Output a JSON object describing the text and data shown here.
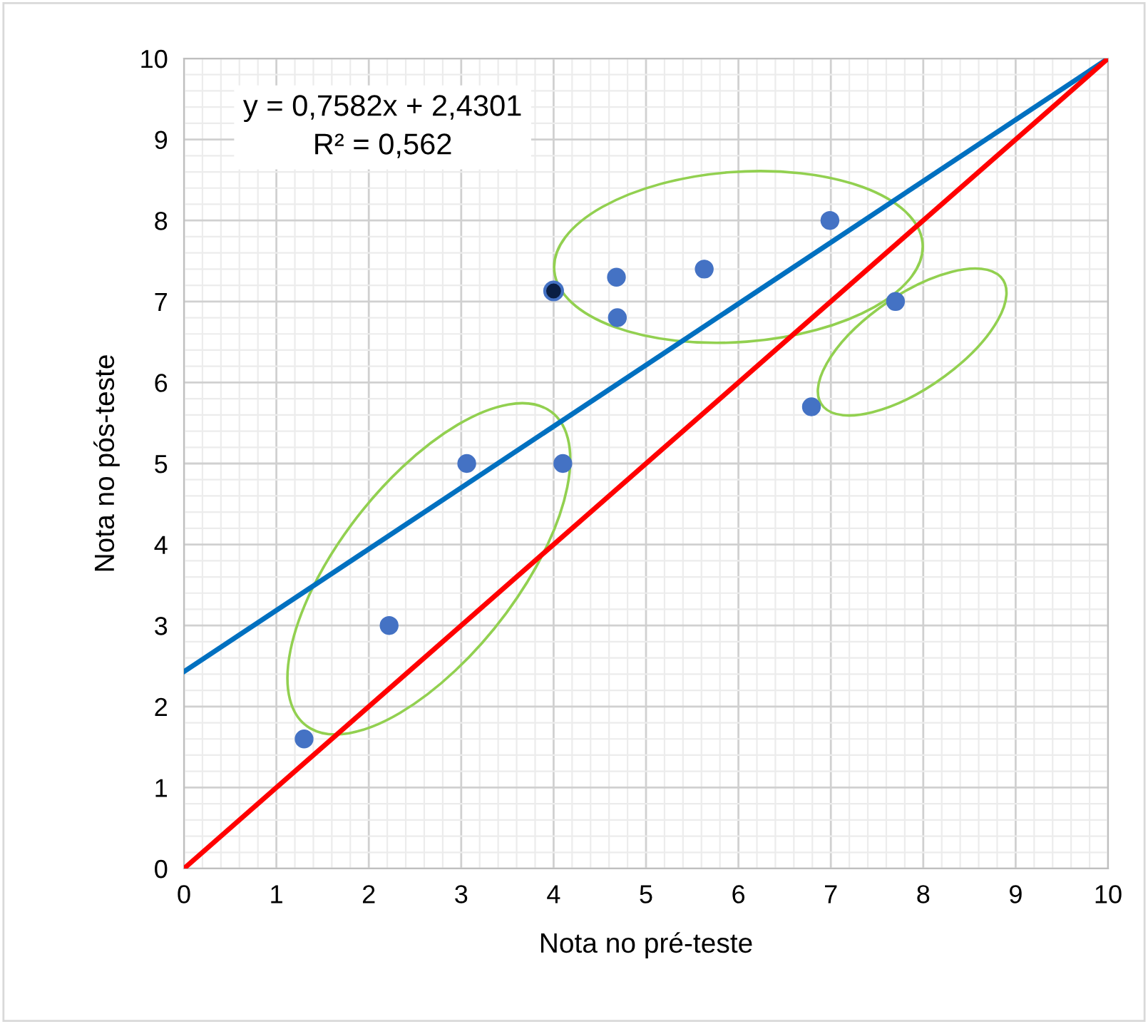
{
  "chart_data": {
    "type": "scatter",
    "xlabel": "Nota no pré-teste",
    "ylabel": "Nota no pós-teste",
    "series": [
      {
        "marker": "circle",
        "color": "#4472c4",
        "x": [
          1.3,
          2.22,
          3.06,
          4.1,
          4.0,
          4.68,
          4.69,
          5.63,
          6.99,
          6.79,
          7.7
        ],
        "values": [
          1.6,
          3.0,
          5.0,
          5.0,
          7.13,
          7.3,
          6.8,
          7.4,
          8.0,
          5.7,
          7.0
        ],
        "colors": [
          "#4472c4",
          "#4472c4",
          "#4472c4",
          "#4472c4",
          "#0a1f44",
          "#4472c4",
          "#4472c4",
          "#4472c4",
          "#4472c4",
          "#4472c4",
          "#4472c4"
        ]
      },
      {
        "type": "line",
        "color": "#0070c0",
        "x": [
          0,
          10
        ],
        "values": [
          2.43,
          10
        ]
      },
      {
        "type": "line",
        "color": "#ff0000",
        "x": [
          0,
          10
        ],
        "values": [
          0,
          10
        ]
      }
    ],
    "annotations": [
      "y = 0,7582x + 2,4301",
      "R² = 0,562"
    ],
    "xlim": [
      0,
      10
    ],
    "ylim": [
      0,
      10
    ],
    "xticks": [
      0,
      1,
      2,
      3,
      4,
      5,
      6,
      7,
      8,
      9,
      10
    ],
    "yticks": [
      0,
      1,
      2,
      3,
      4,
      5,
      6,
      7,
      8,
      9,
      10
    ],
    "grid": true,
    "line_style": "solid"
  }
}
